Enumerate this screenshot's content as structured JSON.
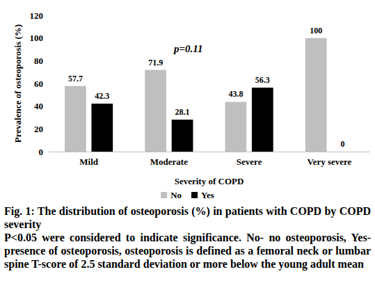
{
  "chart_data": {
    "type": "bar",
    "caption": "Fig. 1: The distribution of osteoporosis (%) in patients with COPD by COPD severity",
    "caption_note": "P<0.05 were considered to indicate significance. No- no osteoporosis, Yes- presence of osteoporosis, osteoporosis is defined as a femoral neck or lumbar spine T-score of 2.5 standard deviation or more below the young adult mean",
    "x_label": "Severity of COPD",
    "y_label": "Prevalence of osteoporosis (%)",
    "annotation": "p=0.11",
    "categories": [
      "Mild",
      "Moderate",
      "Severe",
      "Very severe"
    ],
    "series": [
      {
        "name": "No",
        "color": "#bfbfbf",
        "values": [
          57.7,
          71.9,
          43.8,
          100
        ]
      },
      {
        "name": "Yes",
        "color": "#000000",
        "values": [
          42.3,
          28.1,
          56.3,
          0
        ]
      }
    ],
    "ylim": [
      0,
      120
    ],
    "yticks": [
      0,
      20,
      40,
      60,
      80,
      100,
      120
    ],
    "grid": false,
    "legend": "bottom",
    "data_labels": true
  }
}
